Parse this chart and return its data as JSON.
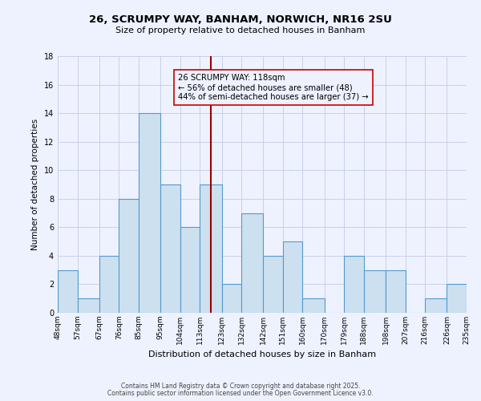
{
  "title": "26, SCRUMPY WAY, BANHAM, NORWICH, NR16 2SU",
  "subtitle": "Size of property relative to detached houses in Banham",
  "xlabel": "Distribution of detached houses by size in Banham",
  "ylabel": "Number of detached properties",
  "bins": [
    48,
    57,
    67,
    76,
    85,
    95,
    104,
    113,
    123,
    132,
    142,
    151,
    160,
    170,
    179,
    188,
    198,
    207,
    216,
    226,
    235
  ],
  "counts": [
    3,
    1,
    4,
    8,
    14,
    9,
    6,
    9,
    2,
    7,
    4,
    5,
    1,
    0,
    4,
    3,
    3,
    0,
    1,
    2
  ],
  "bar_face_color": "#cce0f0",
  "bar_edge_color": "#5599cc",
  "vline_x": 118,
  "vline_color": "#990000",
  "annotation_text": "26 SCRUMPY WAY: 118sqm\n← 56% of detached houses are smaller (48)\n44% of semi-detached houses are larger (37) →",
  "annotation_box_edge": "#cc0000",
  "ylim": [
    0,
    18
  ],
  "yticks": [
    0,
    2,
    4,
    6,
    8,
    10,
    12,
    14,
    16,
    18
  ],
  "bg_color": "#eef2ff",
  "grid_color": "#c8d0e8",
  "footer1": "Contains HM Land Registry data © Crown copyright and database right 2025.",
  "footer2": "Contains public sector information licensed under the Open Government Licence v3.0."
}
